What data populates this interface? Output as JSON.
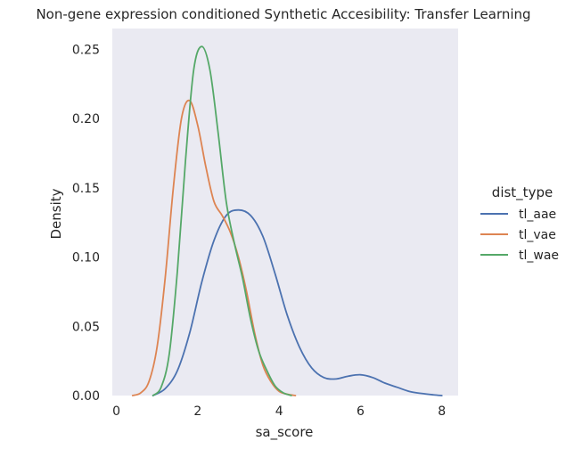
{
  "chart_data": {
    "type": "line",
    "title": "Non-gene expression conditioned Synthetic Accesibility: Transfer Learning",
    "xlabel": "sa_score",
    "ylabel": "Density",
    "xlim": [
      -0.1,
      8.4
    ],
    "ylim": [
      0,
      0.265
    ],
    "xticks": [
      0,
      2,
      4,
      6,
      8
    ],
    "xtick_labels": [
      "0",
      "2",
      "4",
      "6",
      "8"
    ],
    "yticks": [
      0,
      0.05,
      0.1,
      0.15,
      0.2,
      0.25
    ],
    "ytick_labels": [
      "0.00",
      "0.05",
      "0.10",
      "0.15",
      "0.20",
      "0.25"
    ],
    "grid": false,
    "background": "#eaeaf2",
    "legend": {
      "title": "dist_type",
      "placement": "right"
    },
    "series": [
      {
        "name": "tl_aae",
        "color": "#4c72b0",
        "x": [
          0.9,
          1.2,
          1.5,
          1.8,
          2.1,
          2.4,
          2.7,
          3.0,
          3.3,
          3.6,
          3.9,
          4.2,
          4.5,
          4.8,
          5.1,
          5.4,
          5.7,
          6.0,
          6.3,
          6.6,
          6.9,
          7.2,
          7.5,
          7.8,
          8.0
        ],
        "y": [
          0.0,
          0.005,
          0.018,
          0.045,
          0.082,
          0.112,
          0.13,
          0.134,
          0.13,
          0.115,
          0.088,
          0.058,
          0.035,
          0.02,
          0.013,
          0.012,
          0.014,
          0.015,
          0.013,
          0.009,
          0.006,
          0.003,
          0.0015,
          0.0005,
          0.0
        ]
      },
      {
        "name": "tl_vae",
        "color": "#dd8452",
        "x": [
          0.4,
          0.6,
          0.8,
          1.0,
          1.2,
          1.4,
          1.6,
          1.8,
          2.0,
          2.2,
          2.4,
          2.6,
          2.8,
          3.0,
          3.2,
          3.4,
          3.6,
          3.8,
          4.0,
          4.2,
          4.4
        ],
        "y": [
          0.0,
          0.002,
          0.01,
          0.035,
          0.085,
          0.15,
          0.2,
          0.213,
          0.195,
          0.165,
          0.14,
          0.13,
          0.118,
          0.1,
          0.075,
          0.045,
          0.022,
          0.01,
          0.003,
          0.001,
          0.0
        ]
      },
      {
        "name": "tl_wae",
        "color": "#55a868",
        "x": [
          0.9,
          1.1,
          1.3,
          1.5,
          1.7,
          1.9,
          2.1,
          2.3,
          2.5,
          2.7,
          2.9,
          3.1,
          3.3,
          3.5,
          3.7,
          3.9,
          4.1,
          4.3
        ],
        "y": [
          0.0,
          0.006,
          0.03,
          0.09,
          0.17,
          0.235,
          0.252,
          0.235,
          0.19,
          0.14,
          0.11,
          0.085,
          0.055,
          0.032,
          0.018,
          0.007,
          0.002,
          0.0
        ]
      }
    ]
  }
}
